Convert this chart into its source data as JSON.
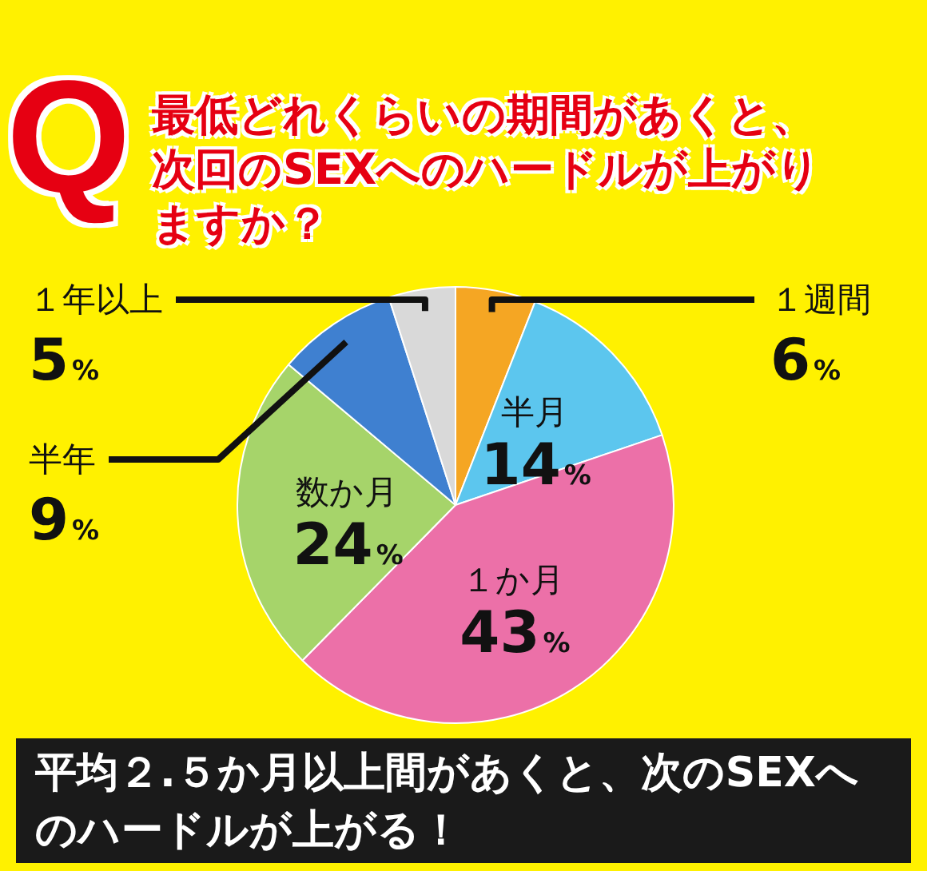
{
  "chart_data": {
    "type": "pie",
    "title": "最低どれくらいの期間があくと、次回のSEXへのハードルが上がりますか？",
    "annotations": [
      "Q",
      "平均２.５か月以上間があくと、次のSEXへのハードルが上がる！"
    ],
    "categories": [
      "１週間",
      "半月",
      "１か月",
      "数か月",
      "半年",
      "１年以上"
    ],
    "values": [
      6,
      14,
      43,
      24,
      9,
      5
    ],
    "value_labels": [
      "6%",
      "14%",
      "43%",
      "24%",
      "9%",
      "5%"
    ],
    "colors": [
      "#f5a623",
      "#5cc6ee",
      "#ec70a8",
      "#a6d46a",
      "#3f80d0",
      "#d9d9d9"
    ],
    "legend": false
  }
}
